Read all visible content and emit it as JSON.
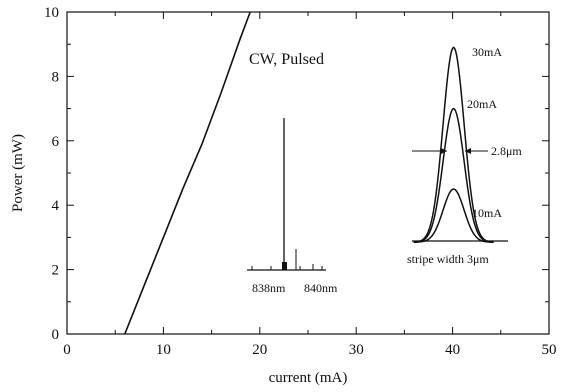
{
  "chart_data": {
    "type": "line",
    "xlabel": "current (mA)",
    "ylabel": "Power (mW)",
    "xlim": [
      0,
      50
    ],
    "ylim": [
      0,
      10
    ],
    "xticks": [
      0,
      10,
      20,
      30,
      40,
      50
    ],
    "yticks": [
      0,
      2,
      4,
      6,
      8,
      10
    ],
    "grid": false,
    "series": [
      {
        "x": [
          6.0,
          8.0,
          10.0,
          12.0,
          14.0,
          16.0,
          18.0,
          19.0
        ],
        "y": [
          0.0,
          1.5,
          3.0,
          4.5,
          5.9,
          7.5,
          9.2,
          10.0
        ]
      }
    ],
    "annotations": {
      "mode": "CW, Pulsed",
      "spectrum_left": "838nm",
      "spectrum_right": "840nm",
      "profile_labels": [
        "30mA",
        "20mA",
        "10mA"
      ],
      "profile_peaks": [
        8.9,
        7.0,
        4.5
      ],
      "profile_baseline": 2.85,
      "profile_center_x": 40.1,
      "fwhm_label": "2.8μm",
      "stripe_label": "stripe width 3μm"
    }
  }
}
